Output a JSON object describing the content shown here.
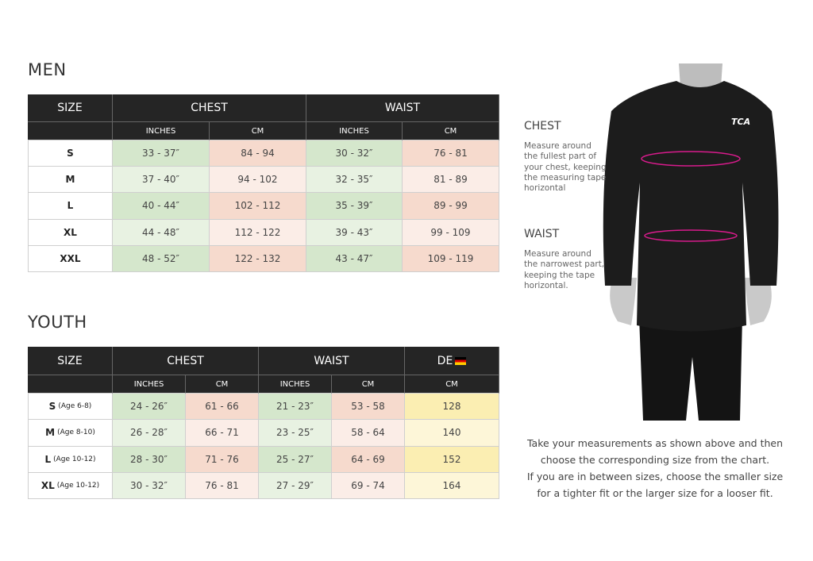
{
  "men": {
    "title": "MEN",
    "headers": [
      "SIZE",
      "CHEST",
      "WAIST"
    ],
    "subheaders": [
      "INCHES",
      "CM",
      "INCHES",
      "CM"
    ],
    "rows": [
      [
        "S",
        "33 - 37″",
        "84 - 94",
        "30 - 32″",
        "76 - 81"
      ],
      [
        "M",
        "37 - 40″",
        "94 - 102",
        "32 - 35″",
        "81 - 89"
      ],
      [
        "L",
        "40 - 44″",
        "102 - 112",
        "35 - 39″",
        "89 - 99"
      ],
      [
        "XL",
        "44 - 48″",
        "112 - 122",
        "39 - 43″",
        "99 - 109"
      ],
      [
        "XXL",
        "48 - 52″",
        "122 - 132",
        "43 - 47″",
        "109 - 119"
      ]
    ]
  },
  "youth": {
    "title": "YOUTH",
    "headers": [
      "SIZE",
      "CHEST",
      "WAIST",
      "DE"
    ],
    "subheaders": [
      "INCHES",
      "CM",
      "INCHES",
      "CM",
      "CM"
    ],
    "rows": [
      {
        "size": "S",
        "age": "(Age 6-8)",
        "cells": [
          "24 - 26″",
          "61 - 66",
          "21 - 23″",
          "53 - 58",
          "128"
        ]
      },
      {
        "size": "M",
        "age": "(Age 8-10)",
        "cells": [
          "26 - 28″",
          "66 - 71",
          "23 - 25″",
          "58 - 64",
          "140"
        ]
      },
      {
        "size": "L",
        "age": "(Age 10-12)",
        "cells": [
          "28 - 30″",
          "71 - 76",
          "25 - 27″",
          "64 - 69",
          "152"
        ]
      },
      {
        "size": "XL",
        "age": "(Age 10-12)",
        "cells": [
          "30 - 32″",
          "76 - 81",
          "27 - 29″",
          "69 - 74",
          "164"
        ]
      }
    ]
  },
  "guide": {
    "chest": {
      "title": "CHEST",
      "lines": [
        "Measure around",
        "the fullest part of",
        "your chest, keeping",
        "the measuring tape",
        "horizontal"
      ]
    },
    "waist": {
      "title": "WAIST",
      "lines": [
        "Measure around",
        "the narrowest part,",
        "keeping the tape",
        "horizontal."
      ]
    },
    "note": [
      "Take your measurements as shown above and then",
      "choose the corresponding size from the chart.",
      "If you are in between sizes, choose the smaller size",
      "for a tighter fit or the larger size for a looser fit."
    ]
  },
  "figure": {
    "logo": "TCA"
  }
}
